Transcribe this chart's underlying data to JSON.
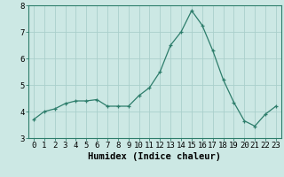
{
  "x": [
    0,
    1,
    2,
    3,
    4,
    5,
    6,
    7,
    8,
    9,
    10,
    11,
    12,
    13,
    14,
    15,
    16,
    17,
    18,
    19,
    20,
    21,
    22,
    23
  ],
  "y": [
    3.7,
    4.0,
    4.1,
    4.3,
    4.4,
    4.4,
    4.45,
    4.2,
    4.2,
    4.2,
    4.6,
    4.9,
    5.5,
    6.5,
    7.0,
    7.8,
    7.25,
    6.3,
    5.2,
    4.35,
    3.65,
    3.45,
    3.9,
    4.2
  ],
  "xlabel": "Humidex (Indice chaleur)",
  "ylim": [
    3,
    8
  ],
  "xlim": [
    -0.5,
    23.5
  ],
  "yticks": [
    3,
    4,
    5,
    6,
    7,
    8
  ],
  "xticks": [
    0,
    1,
    2,
    3,
    4,
    5,
    6,
    7,
    8,
    9,
    10,
    11,
    12,
    13,
    14,
    15,
    16,
    17,
    18,
    19,
    20,
    21,
    22,
    23
  ],
  "line_color": "#2d7d6b",
  "marker_color": "#2d7d6b",
  "bg_color": "#cce8e4",
  "grid_color": "#aacfcb",
  "border_color": "#2d7d6b",
  "xlabel_fontsize": 7.5,
  "tick_fontsize": 6.5
}
